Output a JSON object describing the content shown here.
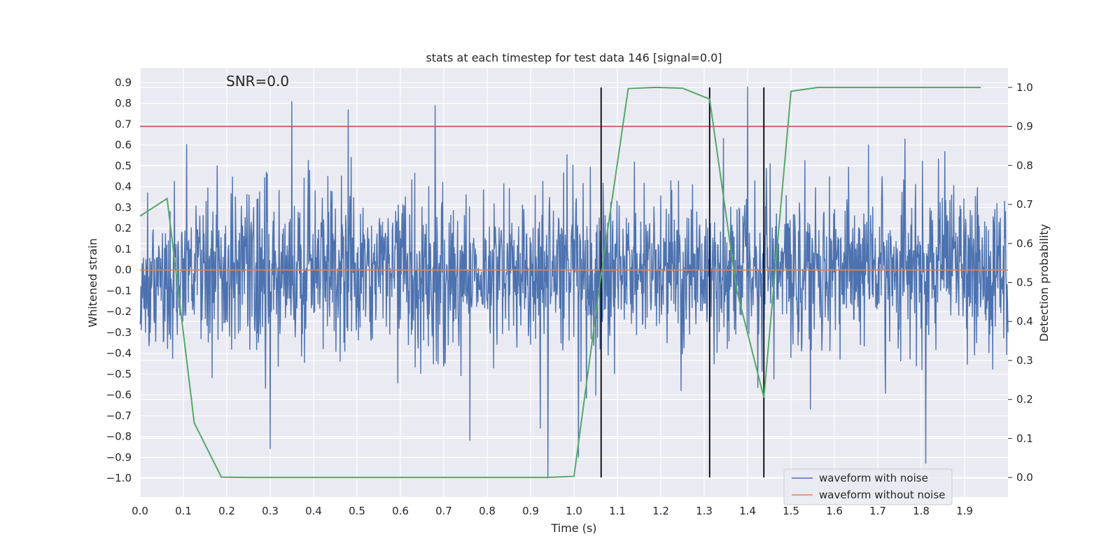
{
  "chart_data": {
    "type": "line",
    "title": "stats at each timestep for test data 146 [signal=0.0]",
    "annotation": "SNR=0.0",
    "xlabel": "Time (s)",
    "ylabel": "Whitened strain",
    "y2label": "Detection probability",
    "xlim": [
      0.0,
      2.0
    ],
    "ylim": [
      -1.09,
      0.97
    ],
    "y2lim": [
      -0.05,
      1.05
    ],
    "x_ticks": [
      0.0,
      0.1,
      0.2,
      0.3,
      0.4,
      0.5,
      0.6,
      0.7,
      0.8,
      0.9,
      1.0,
      1.1,
      1.2,
      1.3,
      1.4,
      1.5,
      1.6,
      1.7,
      1.8,
      1.9
    ],
    "x_tick_labels": [
      "0.0",
      "0.1",
      "0.2",
      "0.3",
      "0.4",
      "0.5",
      "0.6",
      "0.7",
      "0.8",
      "0.9",
      "1.0",
      "1.1",
      "1.2",
      "1.3",
      "1.4",
      "1.5",
      "1.6",
      "1.7",
      "1.8",
      "1.9"
    ],
    "y_ticks": [
      -1.0,
      -0.9,
      -0.8,
      -0.7,
      -0.6,
      -0.5,
      -0.4,
      -0.3,
      -0.2,
      -0.1,
      0.0,
      0.1,
      0.2,
      0.3,
      0.4,
      0.5,
      0.6,
      0.7,
      0.8,
      0.9
    ],
    "y_tick_labels": [
      "−1.0",
      "−0.9",
      "−0.8",
      "−0.7",
      "−0.6",
      "−0.5",
      "−0.4",
      "−0.3",
      "−0.2",
      "−0.1",
      "0.0",
      "0.1",
      "0.2",
      "0.3",
      "0.4",
      "0.5",
      "0.6",
      "0.7",
      "0.8",
      "0.9"
    ],
    "y2_ticks": [
      0.0,
      0.1,
      0.2,
      0.3,
      0.4,
      0.5,
      0.6,
      0.7,
      0.8,
      0.9,
      1.0
    ],
    "y2_tick_labels": [
      "0.0",
      "0.1",
      "0.2",
      "0.3",
      "0.4",
      "0.5",
      "0.6",
      "0.7",
      "0.8",
      "0.9",
      "1.0"
    ],
    "legend": {
      "position": "lower-right",
      "entries": [
        {
          "label": "waveform with noise",
          "color": "#4c72b0"
        },
        {
          "label": "waveform without noise",
          "color": "#dd8452"
        }
      ]
    },
    "series": [
      {
        "name": "waveform with noise",
        "axis": "left",
        "color": "#4c72b0",
        "style": "dense-noise",
        "x_range": [
          0.0,
          2.0
        ],
        "n_points": 2048,
        "std": 0.25,
        "range": [
          -1.0,
          0.88
        ],
        "notable_spikes": [
          {
            "x": 0.35,
            "y": 0.81
          },
          {
            "x": 0.94,
            "y": -1.0
          },
          {
            "x": 1.4,
            "y": 0.88
          },
          {
            "x": 1.81,
            "y": -0.93
          },
          {
            "x": 0.3,
            "y": -0.86
          },
          {
            "x": 1.01,
            "y": -0.9
          },
          {
            "x": 0.48,
            "y": 0.77
          },
          {
            "x": 0.68,
            "y": 0.79
          },
          {
            "x": 0.76,
            "y": -0.82
          }
        ]
      },
      {
        "name": "waveform without noise",
        "axis": "left",
        "color": "#dd8452",
        "x": [
          0.0,
          2.0
        ],
        "y": [
          0.0,
          0.0
        ]
      },
      {
        "name": "Detection probability",
        "axis": "right",
        "color": "#55a868",
        "x": [
          0.0,
          0.0625,
          0.125,
          0.1875,
          0.25,
          0.3125,
          0.375,
          0.4375,
          0.5,
          0.5625,
          0.625,
          0.6875,
          0.75,
          0.8125,
          0.875,
          0.9375,
          1.0,
          1.0625,
          1.125,
          1.1875,
          1.25,
          1.3125,
          1.375,
          1.4375,
          1.5,
          1.5625,
          1.625,
          1.6875,
          1.75,
          1.8125,
          1.875,
          1.9375
        ],
        "y": [
          0.67,
          0.715,
          0.14,
          0.001,
          0.0,
          0.0,
          0.0,
          0.0,
          0.0,
          0.0,
          0.0,
          0.0,
          0.0,
          0.0,
          0.0,
          0.0,
          0.003,
          0.52,
          0.997,
          1.0,
          0.998,
          0.97,
          0.48,
          0.205,
          0.99,
          1.0,
          1.0,
          1.0,
          1.0,
          1.0,
          1.0,
          1.0
        ]
      }
    ],
    "threshold_line": {
      "axis": "right",
      "y": 0.9,
      "color": "#c44e52"
    },
    "vertical_lines": {
      "x": [
        1.0625,
        1.3125,
        1.4375
      ],
      "y2_range": [
        0.0,
        1.0
      ],
      "color": "#000000"
    }
  }
}
